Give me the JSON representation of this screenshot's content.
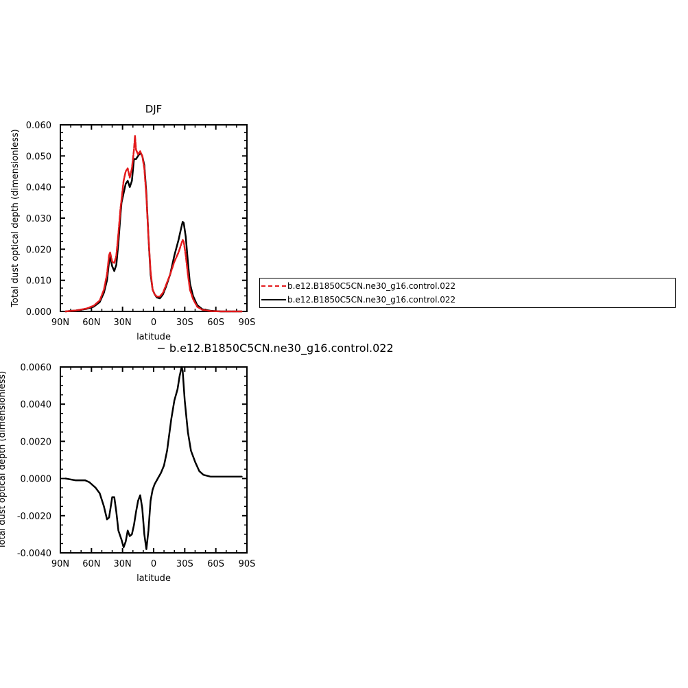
{
  "legend": {
    "entries": [
      {
        "label": "b.e12.B1850C5CN.ne30_g16.control.022",
        "color": "#e31a1c",
        "style": "dashed"
      },
      {
        "label": "b.e12.B1850C5CN.ne30_g16.control.022",
        "color": "#000000",
        "style": "solid"
      }
    ]
  },
  "chart_data": [
    {
      "type": "line",
      "title": "DJF",
      "xlabel": "latitude",
      "ylabel": "Total dust optical depth (dimensionless)",
      "xlim": [
        90,
        -90
      ],
      "ylim": [
        0,
        0.06
      ],
      "x_ticks": [
        90,
        60,
        30,
        0,
        -30,
        -60,
        -90
      ],
      "x_tick_labels": [
        "90N",
        "60N",
        "30N",
        "0",
        "30S",
        "60S",
        "90S"
      ],
      "y_ticks": [
        0,
        0.01,
        0.02,
        0.03,
        0.04,
        0.05,
        0.06
      ],
      "y_tick_labels": [
        "0.000",
        "0.010",
        "0.020",
        "0.030",
        "0.040",
        "0.050",
        "0.060"
      ],
      "series": [
        {
          "name": "b.e12.B1850C5CN.ne30_g16.control.022",
          "color": "#000000",
          "style": "solid",
          "points": [
            [
              85,
              0
            ],
            [
              75,
              0.0003
            ],
            [
              65,
              0.0008
            ],
            [
              58,
              0.0015
            ],
            [
              52,
              0.003
            ],
            [
              48,
              0.006
            ],
            [
              45,
              0.01
            ],
            [
              43,
              0.016
            ],
            [
              42,
              0.0175
            ],
            [
              40,
              0.0145
            ],
            [
              38,
              0.013
            ],
            [
              36,
              0.015
            ],
            [
              34,
              0.022
            ],
            [
              32,
              0.031
            ],
            [
              31,
              0.035
            ],
            [
              29,
              0.038
            ],
            [
              27,
              0.041
            ],
            [
              25,
              0.042
            ],
            [
              23,
              0.04
            ],
            [
              21,
              0.042
            ],
            [
              19,
              0.049
            ],
            [
              17,
              0.049
            ],
            [
              15,
              0.05
            ],
            [
              13,
              0.051
            ],
            [
              11,
              0.05
            ],
            [
              9,
              0.047
            ],
            [
              7,
              0.038
            ],
            [
              5,
              0.024
            ],
            [
              3,
              0.012
            ],
            [
              1,
              0.007
            ],
            [
              -1,
              0.0055
            ],
            [
              -3,
              0.0045
            ],
            [
              -6,
              0.0042
            ],
            [
              -9,
              0.0055
            ],
            [
              -12,
              0.008
            ],
            [
              -16,
              0.012
            ],
            [
              -20,
              0.018
            ],
            [
              -24,
              0.023
            ],
            [
              -26,
              0.026
            ],
            [
              -28,
              0.0288
            ],
            [
              -29,
              0.0285
            ],
            [
              -31,
              0.024
            ],
            [
              -33,
              0.016
            ],
            [
              -35,
              0.009
            ],
            [
              -38,
              0.005
            ],
            [
              -42,
              0.002
            ],
            [
              -47,
              0.0007
            ],
            [
              -55,
              0.0002
            ],
            [
              -65,
              0
            ],
            [
              -75,
              0
            ],
            [
              -85,
              0
            ]
          ]
        },
        {
          "name": "b.e12.B1850C5CN.ne30_g16.control.022",
          "color": "#e31a1c",
          "style": "dashed",
          "points": [
            [
              85,
              0
            ],
            [
              75,
              0.0003
            ],
            [
              65,
              0.0009
            ],
            [
              58,
              0.0018
            ],
            [
              52,
              0.0035
            ],
            [
              48,
              0.007
            ],
            [
              45,
              0.012
            ],
            [
              43,
              0.018
            ],
            [
              42,
              0.019
            ],
            [
              40,
              0.016
            ],
            [
              38,
              0.0155
            ],
            [
              36,
              0.018
            ],
            [
              34,
              0.025
            ],
            [
              32,
              0.033
            ],
            [
              31,
              0.036
            ],
            [
              29,
              0.042
            ],
            [
              27,
              0.045
            ],
            [
              25,
              0.046
            ],
            [
              23,
              0.043
            ],
            [
              21,
              0.046
            ],
            [
              19,
              0.052
            ],
            [
              18,
              0.0565
            ],
            [
              17,
              0.052
            ],
            [
              15,
              0.0505
            ],
            [
              13,
              0.0515
            ],
            [
              11,
              0.05
            ],
            [
              9,
              0.046
            ],
            [
              7,
              0.037
            ],
            [
              5,
              0.024
            ],
            [
              3,
              0.013
            ],
            [
              1,
              0.007
            ],
            [
              -1,
              0.0055
            ],
            [
              -3,
              0.0048
            ],
            [
              -6,
              0.0048
            ],
            [
              -9,
              0.006
            ],
            [
              -12,
              0.0085
            ],
            [
              -16,
              0.012
            ],
            [
              -20,
              0.016
            ],
            [
              -24,
              0.019
            ],
            [
              -26,
              0.021
            ],
            [
              -28,
              0.023
            ],
            [
              -29,
              0.0225
            ],
            [
              -31,
              0.018
            ],
            [
              -33,
              0.012
            ],
            [
              -35,
              0.007
            ],
            [
              -38,
              0.004
            ],
            [
              -42,
              0.0015
            ],
            [
              -47,
              0.0005
            ],
            [
              -55,
              0.0001
            ],
            [
              -65,
              0
            ],
            [
              -75,
              0
            ],
            [
              -85,
              0
            ]
          ]
        }
      ]
    },
    {
      "type": "line",
      "title": "− b.e12.B1850C5CN.ne30_g16.control.022",
      "xlabel": "latitude",
      "ylabel": "Total dust optical depth (dimensionless)",
      "xlim": [
        90,
        -90
      ],
      "ylim": [
        -0.004,
        0.006
      ],
      "x_ticks": [
        90,
        60,
        30,
        0,
        -30,
        -60,
        -90
      ],
      "x_tick_labels": [
        "90N",
        "60N",
        "30N",
        "0",
        "30S",
        "60S",
        "90S"
      ],
      "y_ticks": [
        -0.004,
        -0.002,
        0,
        0.002,
        0.004,
        0.006
      ],
      "y_tick_labels": [
        "-0.0040",
        "-0.0020",
        "0.0000",
        "0.0020",
        "0.0040",
        "0.0060"
      ],
      "series": [
        {
          "name": "",
          "color": "#000000",
          "style": "solid",
          "points": [
            [
              85,
              0
            ],
            [
              75,
              -0.0001
            ],
            [
              66,
              -0.0001
            ],
            [
              62,
              -0.0002
            ],
            [
              56,
              -0.0005
            ],
            [
              52,
              -0.0008
            ],
            [
              48,
              -0.0015
            ],
            [
              45,
              -0.0022
            ],
            [
              43,
              -0.0021
            ],
            [
              40,
              -0.001
            ],
            [
              38,
              -0.001
            ],
            [
              36,
              -0.0018
            ],
            [
              34,
              -0.0028
            ],
            [
              31,
              -0.0033
            ],
            [
              29,
              -0.0037
            ],
            [
              27,
              -0.0034
            ],
            [
              25,
              -0.0028
            ],
            [
              23,
              -0.0031
            ],
            [
              21,
              -0.003
            ],
            [
              19,
              -0.0025
            ],
            [
              17,
              -0.0018
            ],
            [
              15,
              -0.0012
            ],
            [
              13,
              -0.0009
            ],
            [
              11,
              -0.0016
            ],
            [
              9,
              -0.003
            ],
            [
              7,
              -0.0038
            ],
            [
              5,
              -0.0028
            ],
            [
              3,
              -0.0012
            ],
            [
              1,
              -0.0006
            ],
            [
              -1,
              -0.0003
            ],
            [
              -4,
              0
            ],
            [
              -7,
              0.0003
            ],
            [
              -10,
              0.0007
            ],
            [
              -13,
              0.0015
            ],
            [
              -17,
              0.0032
            ],
            [
              -20,
              0.0042
            ],
            [
              -23,
              0.0048
            ],
            [
              -25,
              0.0055
            ],
            [
              -27,
              0.006
            ],
            [
              -28,
              0.0058
            ],
            [
              -30,
              0.0042
            ],
            [
              -33,
              0.0025
            ],
            [
              -36,
              0.0015
            ],
            [
              -40,
              0.0009
            ],
            [
              -44,
              0.0004
            ],
            [
              -48,
              0.0002
            ],
            [
              -55,
              0.0001
            ],
            [
              -65,
              0.0001
            ],
            [
              -75,
              0.0001
            ],
            [
              -85,
              0.0001
            ]
          ]
        }
      ]
    }
  ]
}
